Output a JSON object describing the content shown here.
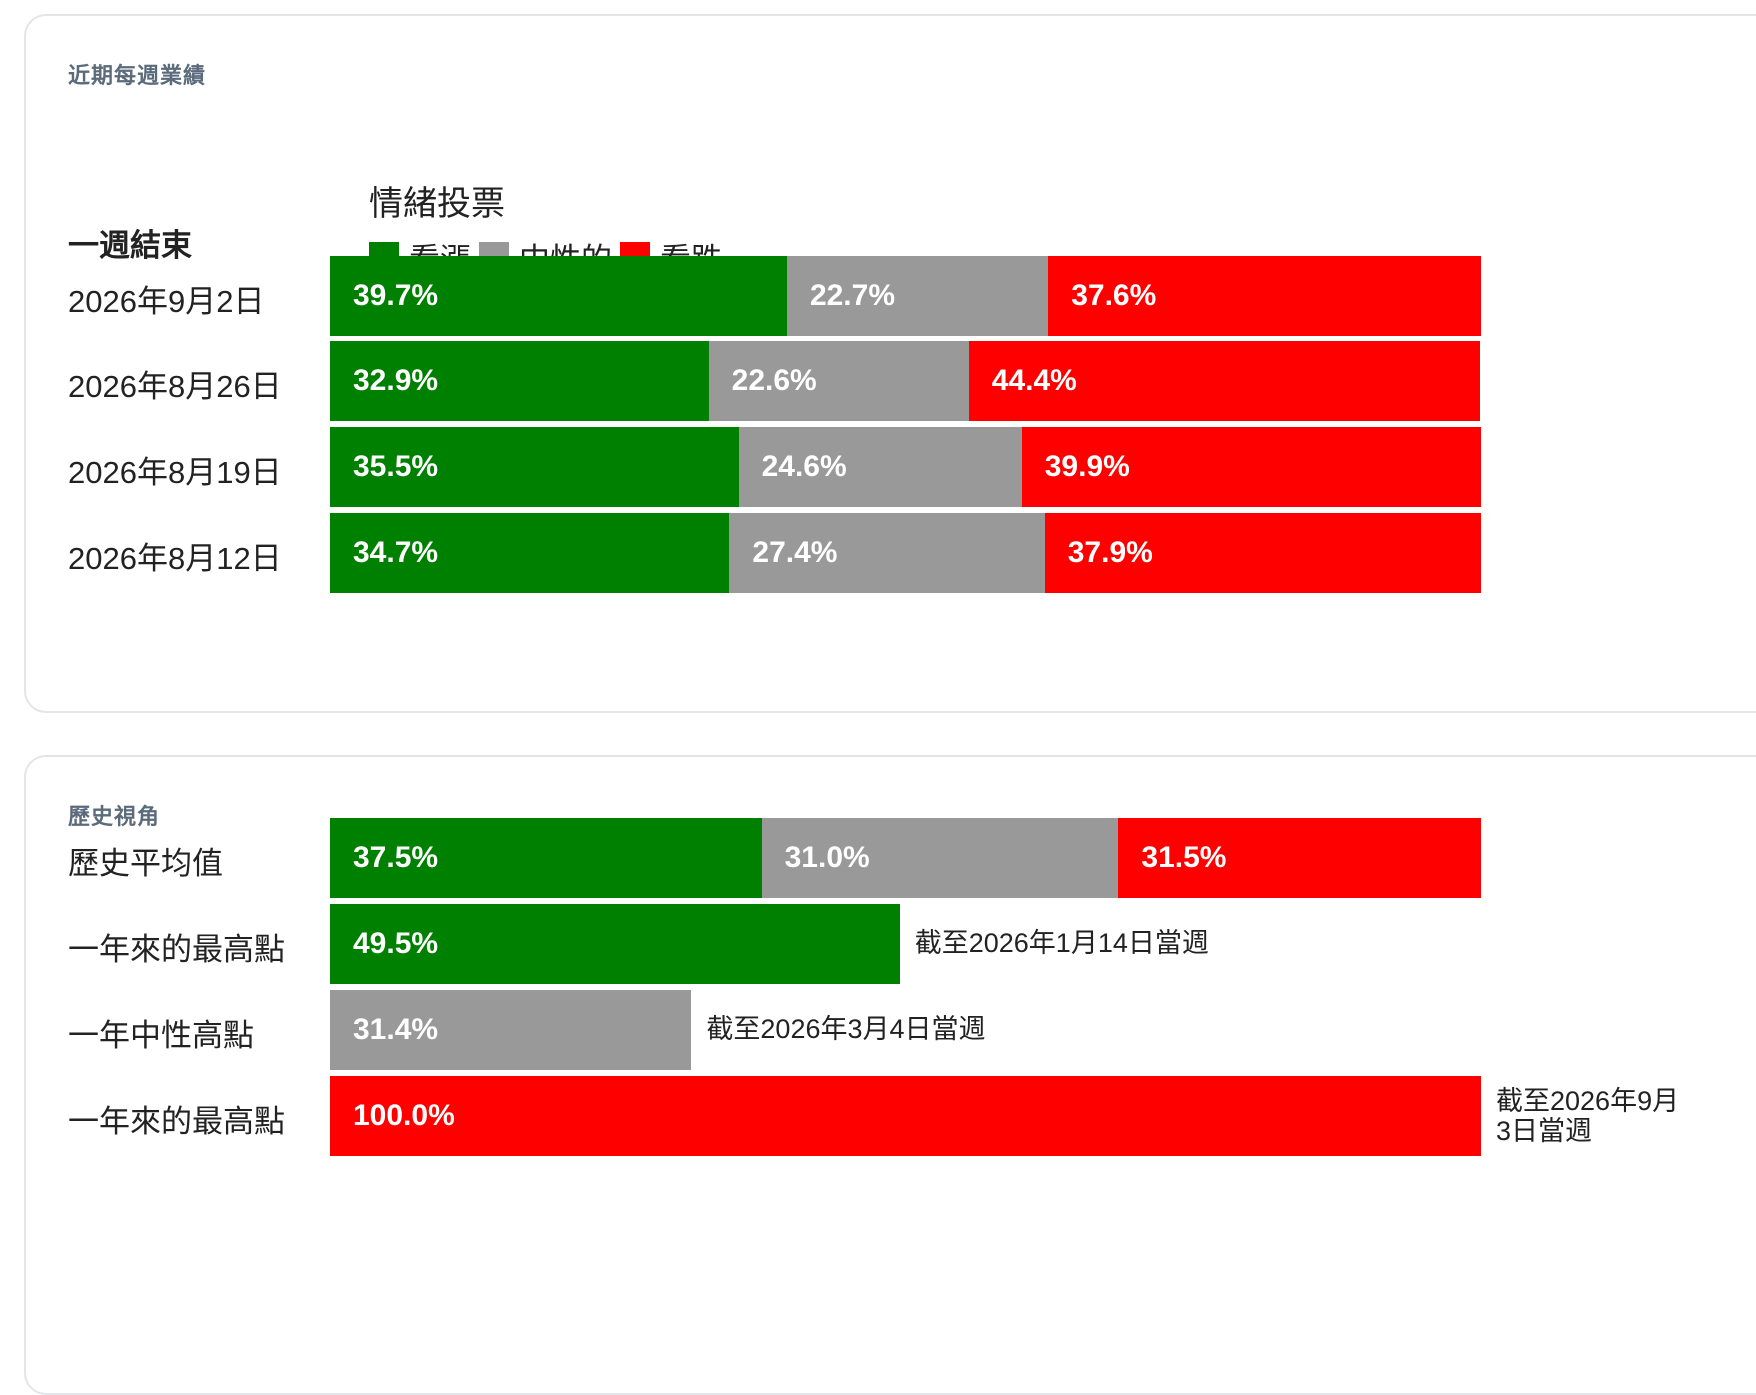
{
  "colors": {
    "bullish": "#008000",
    "neutral": "#999999",
    "bearish": "#ff0000"
  },
  "weekly": {
    "title": "近期每週業績",
    "week_end_label": "一週結束",
    "chart_title": "情緒投票",
    "legend": [
      "看漲",
      "中性的",
      "看跌"
    ]
  },
  "history": {
    "title": "歷史視角"
  },
  "chart_data": [
    {
      "type": "bar",
      "stacked": true,
      "orientation": "horizontal",
      "title": "情緒投票",
      "categories": [
        "2026年9月2日",
        "2026年8月26日",
        "2026年8月19日",
        "2026年8月12日"
      ],
      "series": [
        {
          "name": "看漲",
          "values": [
            39.7,
            32.9,
            35.5,
            34.7
          ],
          "labels": [
            "39.7%",
            "32.9%",
            "35.5%",
            "34.7%"
          ]
        },
        {
          "name": "中性的",
          "values": [
            22.7,
            22.6,
            24.6,
            27.4
          ],
          "labels": [
            "22.7%",
            "22.6%",
            "24.6%",
            "27.4%"
          ]
        },
        {
          "name": "看跌",
          "values": [
            37.6,
            44.4,
            39.9,
            37.9
          ],
          "labels": [
            "37.6%",
            "44.4%",
            "39.9%",
            "37.9%"
          ]
        }
      ],
      "xlim": [
        0,
        100
      ]
    },
    {
      "type": "bar",
      "orientation": "horizontal",
      "average": {
        "label": "歷史平均值",
        "values": [
          37.5,
          31.0,
          31.5
        ],
        "labels": [
          "37.5%",
          "31.0%",
          "31.5%"
        ]
      },
      "highs": [
        {
          "label": "一年來的最高點",
          "value": 49.5,
          "value_label": "49.5%",
          "sentiment": "bullish",
          "note": "截至2026年1月14日當週"
        },
        {
          "label": "一年中性高點",
          "value": 31.4,
          "value_label": "31.4%",
          "sentiment": "neutral",
          "note": "截至2026年3月4日當週"
        },
        {
          "label": "一年來的最高點",
          "value": 100.0,
          "value_label": "100.0%",
          "sentiment": "bearish",
          "note": "截至2026年9月3日當週"
        }
      ],
      "xlim": [
        0,
        100
      ]
    }
  ]
}
